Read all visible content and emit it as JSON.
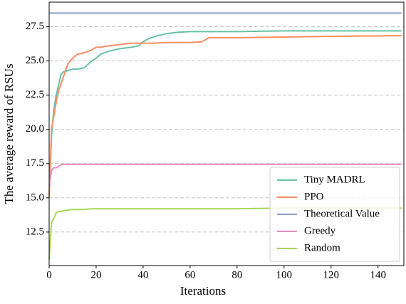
{
  "chart_data": {
    "type": "line",
    "xlabel": "Iterations",
    "ylabel": "The average reward of RSUs",
    "x": [
      0,
      1,
      2,
      3,
      4,
      5,
      6,
      8,
      10,
      12,
      15,
      18,
      20,
      22,
      25,
      30,
      35,
      38,
      40,
      42,
      45,
      50,
      55,
      60,
      65,
      66,
      68,
      70,
      80,
      100,
      120,
      150
    ],
    "series": [
      {
        "name": "Tiny MADRL",
        "color": "#66c2a5",
        "values": [
          15.0,
          19.5,
          21.5,
          22.5,
          23.2,
          24.0,
          24.2,
          24.3,
          24.4,
          24.4,
          24.5,
          25.0,
          25.2,
          25.5,
          25.7,
          25.9,
          26.0,
          26.1,
          26.4,
          26.6,
          26.8,
          27.0,
          27.1,
          27.15,
          27.15,
          27.15,
          27.15,
          27.15,
          27.15,
          27.2,
          27.2,
          27.2
        ]
      },
      {
        "name": "PPO",
        "color": "#fc8d62",
        "values": [
          15.0,
          20.0,
          21.0,
          22.0,
          22.8,
          23.3,
          23.8,
          24.8,
          25.2,
          25.5,
          25.6,
          25.8,
          26.0,
          26.0,
          26.1,
          26.2,
          26.3,
          26.3,
          26.3,
          26.3,
          26.3,
          26.35,
          26.35,
          26.35,
          26.4,
          26.5,
          26.7,
          26.7,
          26.7,
          26.75,
          26.8,
          26.85
        ]
      },
      {
        "name": "Theoretical Value",
        "color": "#8da0cb",
        "values": [
          28.5,
          28.5,
          28.5,
          28.5,
          28.5,
          28.5,
          28.5,
          28.5,
          28.5,
          28.5,
          28.5,
          28.5,
          28.5,
          28.5,
          28.5,
          28.5,
          28.5,
          28.5,
          28.5,
          28.5,
          28.5,
          28.5,
          28.5,
          28.5,
          28.5,
          28.5,
          28.5,
          28.5,
          28.5,
          28.5,
          28.5,
          28.5
        ]
      },
      {
        "name": "Greedy",
        "color": "#e78ac3",
        "values": [
          15.8,
          17.0,
          17.2,
          17.2,
          17.3,
          17.4,
          17.45,
          17.45,
          17.45,
          17.45,
          17.45,
          17.45,
          17.45,
          17.45,
          17.45,
          17.45,
          17.45,
          17.45,
          17.45,
          17.45,
          17.45,
          17.45,
          17.45,
          17.45,
          17.45,
          17.45,
          17.45,
          17.45,
          17.45,
          17.45,
          17.45,
          17.45
        ]
      },
      {
        "name": "Random",
        "color": "#a6d854",
        "values": [
          10.5,
          13.2,
          13.5,
          13.9,
          14.0,
          14.0,
          14.05,
          14.1,
          14.15,
          14.15,
          14.15,
          14.2,
          14.2,
          14.2,
          14.2,
          14.2,
          14.2,
          14.2,
          14.2,
          14.2,
          14.2,
          14.2,
          14.2,
          14.2,
          14.2,
          14.2,
          14.2,
          14.2,
          14.2,
          14.25,
          14.25,
          14.25
        ]
      }
    ],
    "xlim": [
      0,
      151
    ],
    "xticks": [
      0,
      20,
      40,
      60,
      80,
      100,
      120,
      140
    ],
    "ylim": [
      10.05,
      29.3
    ],
    "yticks": [
      12.5,
      15.0,
      17.5,
      20.0,
      22.5,
      25.0,
      27.5
    ],
    "grid": true,
    "legend": "lower right"
  }
}
